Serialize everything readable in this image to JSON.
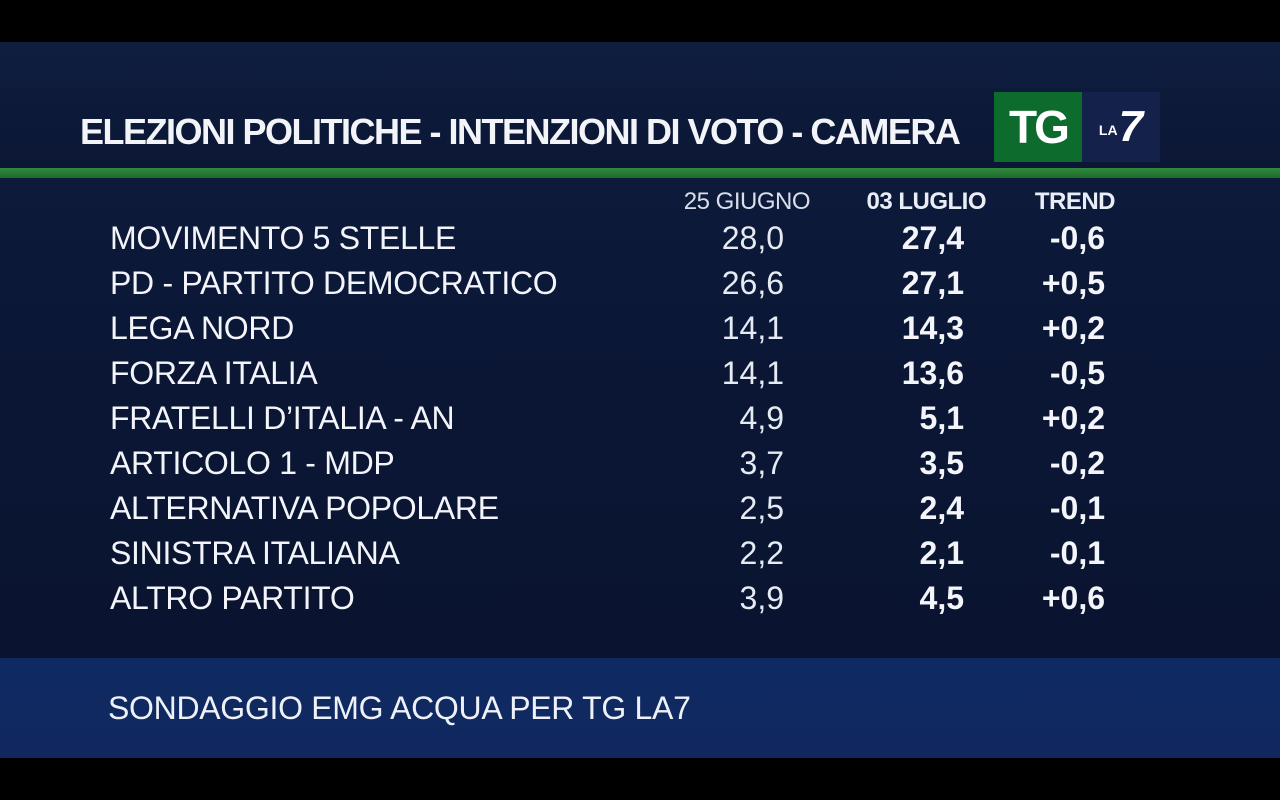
{
  "title": "ELEZIONI POLITICHE - INTENZIONI DI VOTO - CAMERA",
  "logo": {
    "tg_text": "TG",
    "la_text": "LA",
    "seven_text": "7"
  },
  "colors": {
    "background": "#0b1736",
    "accent_green": "#2f8a3c",
    "footer_band": "#10285e",
    "text": "#f3f5fa"
  },
  "footer": {
    "source": "SONDAGGIO EMG ACQUA PER TG LA7"
  },
  "chart_data": {
    "type": "table",
    "title": "ELEZIONI POLITICHE - INTENZIONI DI VOTO - CAMERA",
    "columns": [
      "25 GIUGNO",
      "03 LUGLIO",
      "TREND"
    ],
    "rows": [
      {
        "party": "MOVIMENTO 5 STELLE",
        "v1": "28,0",
        "v2": "27,4",
        "trend": "-0,6"
      },
      {
        "party": "PD - PARTITO DEMOCRATICO",
        "v1": "26,6",
        "v2": "27,1",
        "trend": "+0,5"
      },
      {
        "party": "LEGA NORD",
        "v1": "14,1",
        "v2": "14,3",
        "trend": "+0,2"
      },
      {
        "party": "FORZA ITALIA",
        "v1": "14,1",
        "v2": "13,6",
        "trend": "-0,5"
      },
      {
        "party": "FRATELLI D’ITALIA - AN",
        "v1": "4,9",
        "v2": "5,1",
        "trend": "+0,2"
      },
      {
        "party": "ARTICOLO 1 - MDP",
        "v1": "3,7",
        "v2": "3,5",
        "trend": "-0,2"
      },
      {
        "party": "ALTERNATIVA POPOLARE",
        "v1": "2,5",
        "v2": "2,4",
        "trend": "-0,1"
      },
      {
        "party": "SINISTRA ITALIANA",
        "v1": "2,2",
        "v2": "2,1",
        "trend": "-0,1"
      },
      {
        "party": "ALTRO PARTITO",
        "v1": "3,9",
        "v2": "4,5",
        "trend": "+0,6"
      }
    ],
    "source": "SONDAGGIO EMG ACQUA PER TG LA7"
  }
}
